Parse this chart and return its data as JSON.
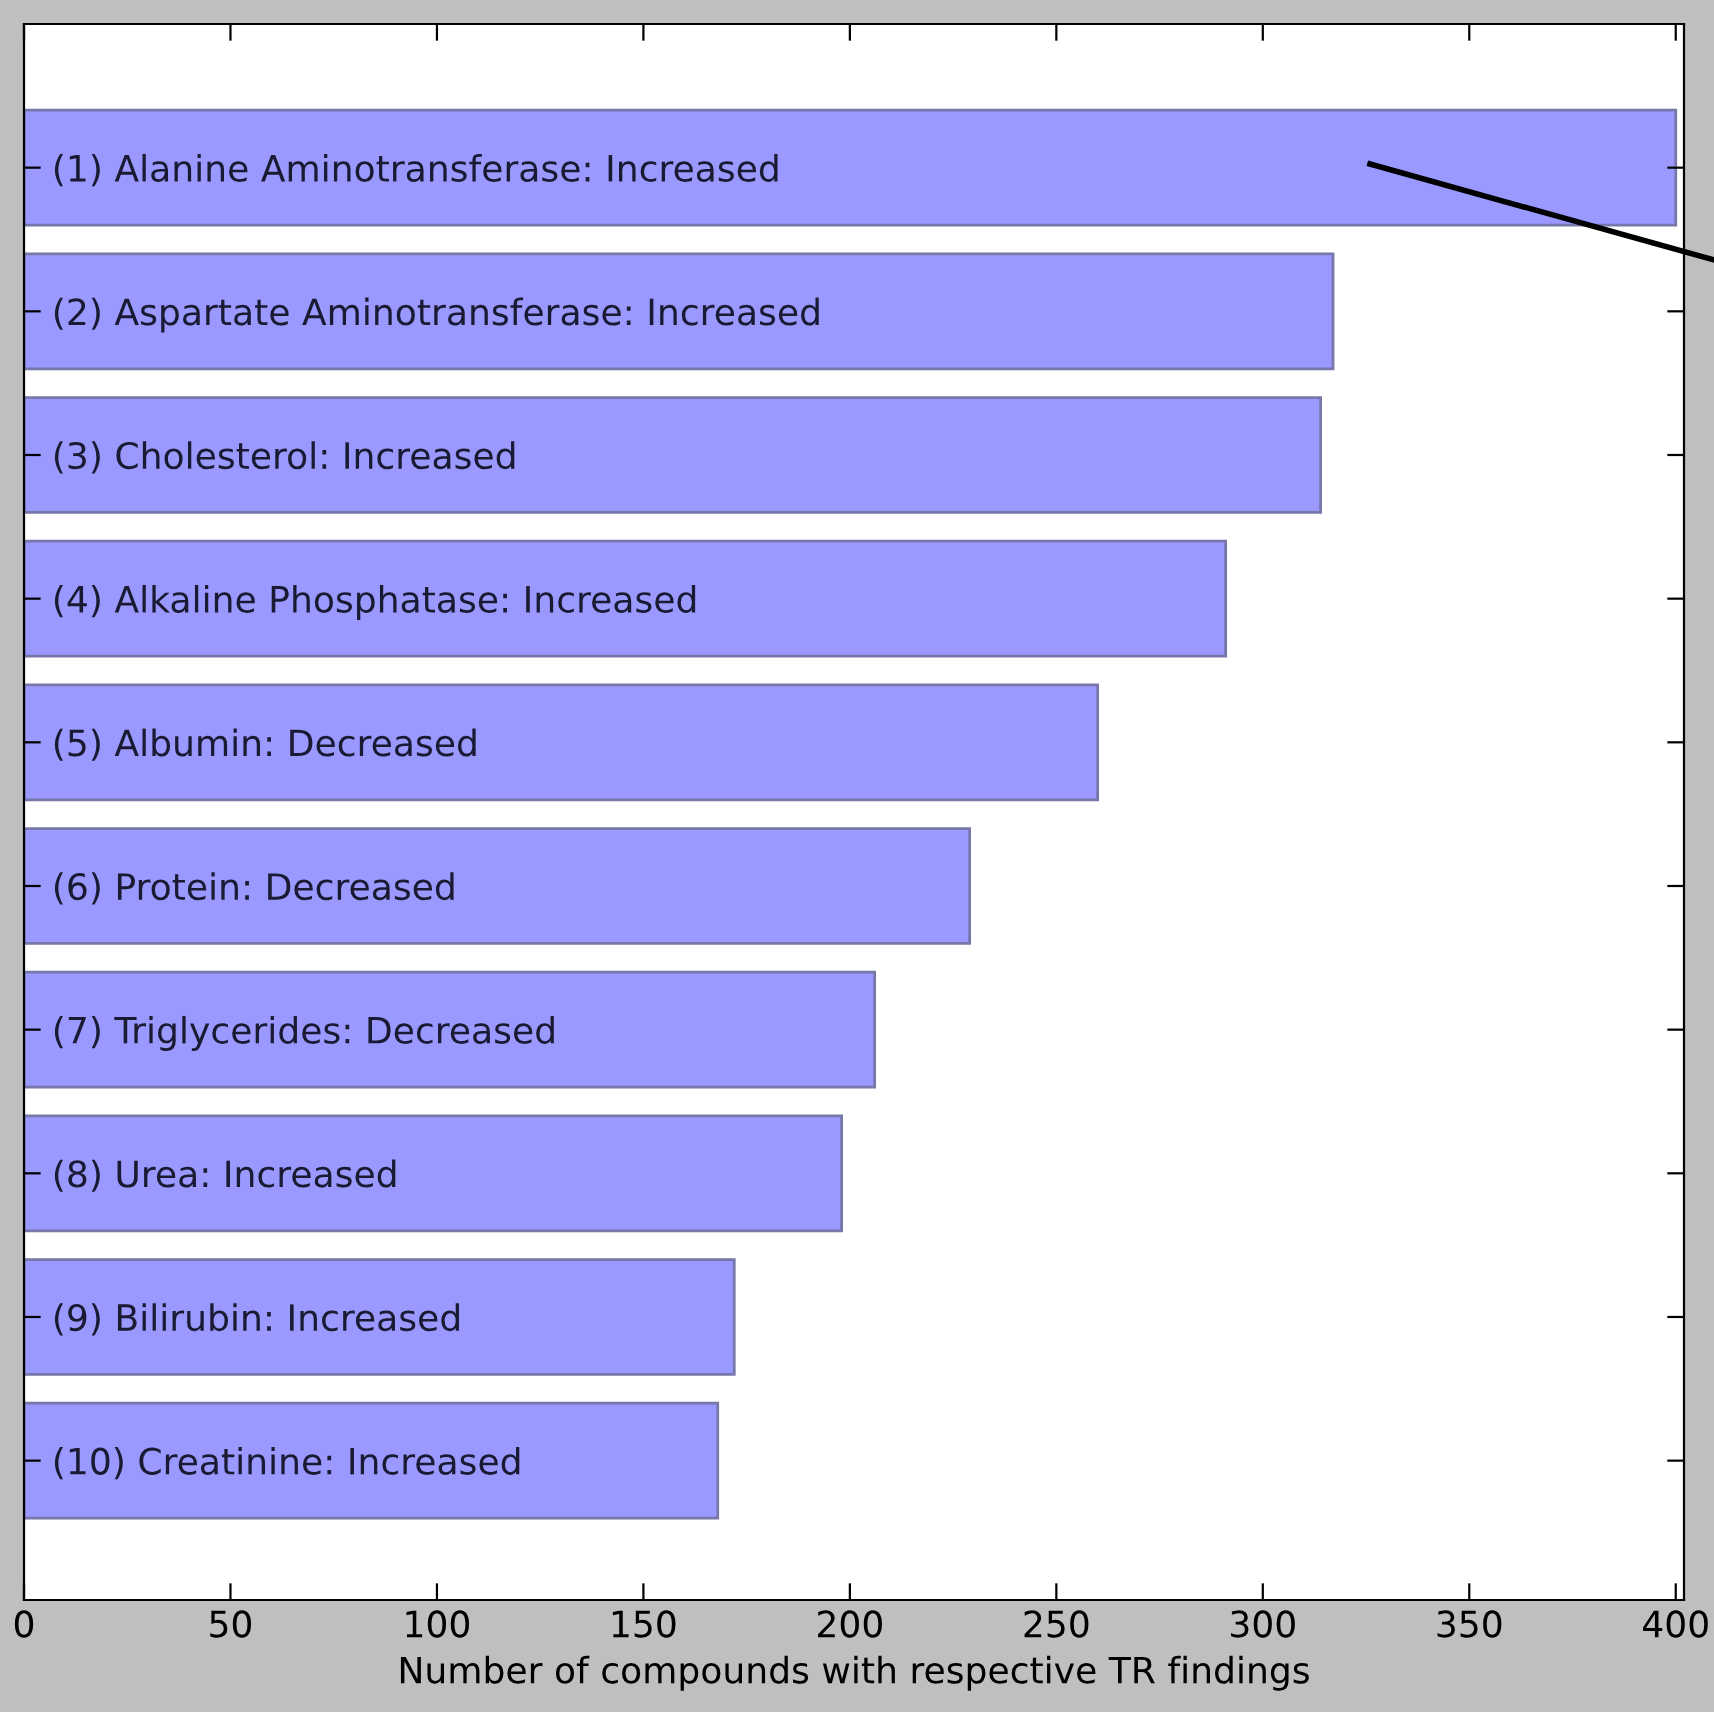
{
  "chart_data": {
    "type": "bar",
    "orientation": "horizontal",
    "xlabel": "Number of compounds with respective TR findings",
    "categories": [
      "(1) Alanine Aminotransferase: Increased",
      "(2) Aspartate Aminotransferase: Increased",
      "(3) Cholesterol: Increased",
      "(4) Alkaline Phosphatase: Increased",
      "(5) Albumin: Decreased",
      "(6) Protein: Decreased",
      "(7) Triglycerides: Decreased",
      "(8) Urea: Increased",
      "(9) Bilirubin: Increased",
      "(10) Creatinine: Increased"
    ],
    "values": [
      400,
      317,
      314,
      291,
      260,
      229,
      206,
      198,
      172,
      168
    ],
    "color": "#9999ff",
    "xlim": [
      0,
      402
    ],
    "xticks": [
      0,
      50,
      100,
      150,
      200,
      250,
      300,
      350,
      400
    ],
    "grid": false
  }
}
